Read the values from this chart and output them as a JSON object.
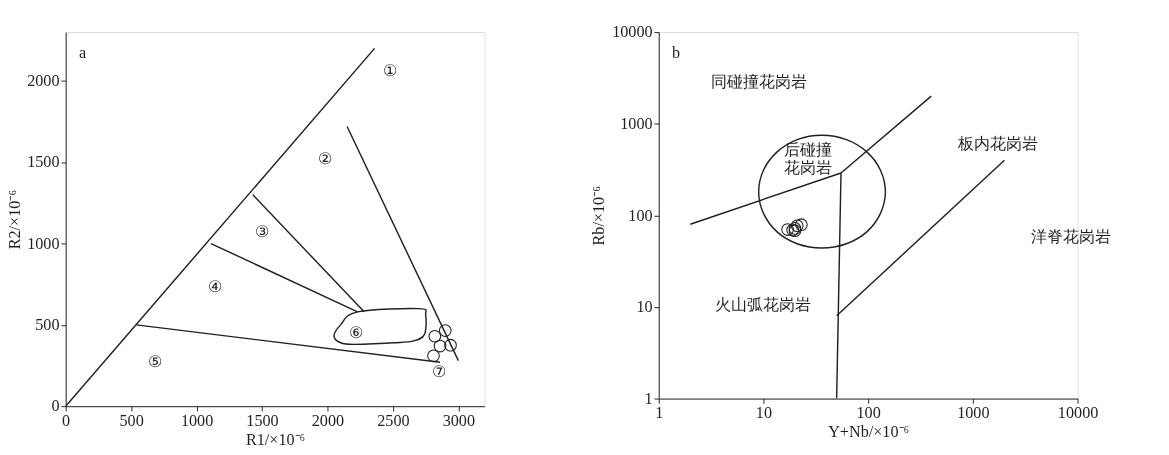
{
  "chart_data": [
    {
      "type": "scatter",
      "title": "a",
      "xlabel": "R1/×10⁻⁶",
      "ylabel": "R2/×10⁻⁶",
      "xlim": [
        0,
        3200
      ],
      "ylim": [
        0,
        2300
      ],
      "xticks": [
        0,
        500,
        1000,
        1500,
        2000,
        2500,
        3000
      ],
      "yticks": [
        0,
        500,
        1000,
        1500,
        2000
      ],
      "grid": false,
      "series": [
        {
          "type": "line",
          "marker": "none",
          "color": "#231f20",
          "x": [
            0,
            2360
          ],
          "values": [
            0,
            2200
          ]
        },
        {
          "type": "line",
          "marker": "none",
          "color": "#231f20",
          "x": [
            2150,
            3000
          ],
          "values": [
            1720,
            280
          ]
        },
        {
          "type": "line",
          "marker": "none",
          "color": "#231f20",
          "x": [
            1430,
            2280
          ],
          "values": [
            1300,
            580
          ]
        },
        {
          "type": "line",
          "marker": "none",
          "color": "#231f20",
          "x": [
            1110,
            2230
          ],
          "values": [
            1000,
            580
          ]
        },
        {
          "type": "line",
          "marker": "none",
          "color": "#231f20",
          "x": [
            540,
            2860
          ],
          "values": [
            500,
            270
          ]
        },
        {
          "marker": "circle",
          "color": "#231f20",
          "x": [
            2820,
            2900,
            2860,
            2940,
            2810
          ],
          "values": [
            430,
            465,
            370,
            375,
            310
          ]
        }
      ],
      "annotations": [
        "①",
        "②",
        "③",
        "④",
        "⑤",
        "⑥",
        "⑦"
      ]
    },
    {
      "type": "scatter",
      "title": "b",
      "xlabel": "Y+Nb/×10⁻⁶",
      "ylabel": "Rb/×10⁻⁶",
      "log": "xy",
      "xlim": [
        1,
        10000
      ],
      "ylim": [
        1,
        10000
      ],
      "xticks": [
        1,
        10,
        100,
        1000,
        10000
      ],
      "yticks": [
        1,
        10,
        100,
        1000,
        10000
      ],
      "grid": false,
      "series": [
        {
          "type": "line",
          "marker": "none",
          "color": "#231f20",
          "x": [
            2,
            55,
            400
          ],
          "values": [
            80,
            290,
            2000
          ]
        },
        {
          "type": "line",
          "marker": "none",
          "color": "#231f20",
          "x": [
            55,
            50
          ],
          "values": [
            290,
            1
          ]
        },
        {
          "type": "line",
          "marker": "none",
          "color": "#231f20",
          "x": [
            50,
            2000
          ],
          "values": [
            8,
            400
          ]
        },
        {
          "marker": "circle",
          "color": "#231f20",
          "x": [
            17,
            19,
            20,
            21,
            23,
            20
          ],
          "values": [
            70,
            69,
            72,
            77,
            79,
            68
          ]
        }
      ],
      "annotations": [
        "同碰撞花岗岩",
        "后碰撞",
        "花岗岩",
        "板内花岗岩",
        "洋脊花岗岩",
        "火山弧花岗岩"
      ]
    }
  ]
}
